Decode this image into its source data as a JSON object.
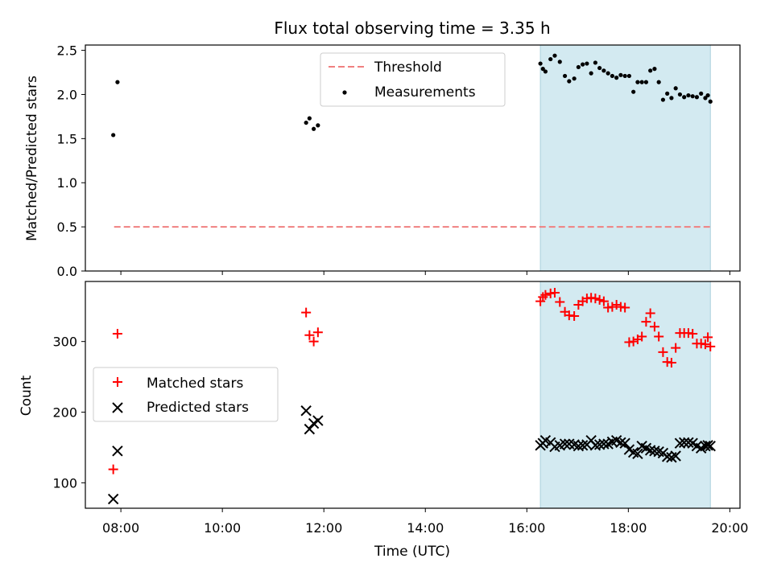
{
  "chart_data": {
    "title": "Flux total observing time = 3.35 h",
    "xlabel": "Time (UTC)",
    "x_unit": "hours UTC",
    "xlim": [
      7.3,
      20.2
    ],
    "xticks": [
      "08:00",
      "10:00",
      "12:00",
      "14:00",
      "16:00",
      "18:00",
      "20:00"
    ],
    "shaded_interval": [
      "16:16",
      "19:37"
    ],
    "shade_color": "#d3eaf1",
    "panels": [
      {
        "type": "scatter",
        "ylabel": "Matched/Predicted stars",
        "ylim": [
          0,
          2.56
        ],
        "yticks": [
          "0.0",
          "0.5",
          "1.0",
          "1.5",
          "2.0",
          "2.5"
        ],
        "legend_position": "upper-center",
        "threshold": {
          "name": "Threshold",
          "value": 0.5,
          "x_range": [
            "07:52",
            "19:37"
          ],
          "color": "#f08080",
          "style": "dashed"
        },
        "series": [
          {
            "name": "Measurements",
            "marker": "dot",
            "color": "#000000",
            "points": [
              [
                "07:51",
                1.54
              ],
              [
                "07:56",
                2.14
              ],
              [
                "11:39",
                1.68
              ],
              [
                "11:43",
                1.73
              ],
              [
                "11:48",
                1.61
              ],
              [
                "11:53",
                1.65
              ],
              [
                "16:16",
                2.35
              ],
              [
                "16:19",
                2.29
              ],
              [
                "16:22",
                2.26
              ],
              [
                "16:28",
                2.4
              ],
              [
                "16:33",
                2.44
              ],
              [
                "16:39",
                2.37
              ],
              [
                "16:45",
                2.21
              ],
              [
                "16:50",
                2.15
              ],
              [
                "16:56",
                2.18
              ],
              [
                "17:01",
                2.31
              ],
              [
                "17:06",
                2.34
              ],
              [
                "17:11",
                2.35
              ],
              [
                "17:16",
                2.24
              ],
              [
                "17:21",
                2.36
              ],
              [
                "17:26",
                2.3
              ],
              [
                "17:31",
                2.27
              ],
              [
                "17:36",
                2.24
              ],
              [
                "17:41",
                2.21
              ],
              [
                "17:46",
                2.19
              ],
              [
                "17:51",
                2.22
              ],
              [
                "17:56",
                2.21
              ],
              [
                "18:01",
                2.21
              ],
              [
                "18:06",
                2.03
              ],
              [
                "18:11",
                2.14
              ],
              [
                "18:16",
                2.14
              ],
              [
                "18:21",
                2.14
              ],
              [
                "18:26",
                2.27
              ],
              [
                "18:31",
                2.29
              ],
              [
                "18:36",
                2.14
              ],
              [
                "18:41",
                1.94
              ],
              [
                "18:46",
                2.01
              ],
              [
                "18:51",
                1.96
              ],
              [
                "18:56",
                2.07
              ],
              [
                "19:01",
                2.0
              ],
              [
                "19:06",
                1.97
              ],
              [
                "19:11",
                1.99
              ],
              [
                "19:16",
                1.98
              ],
              [
                "19:21",
                1.97
              ],
              [
                "19:26",
                2.01
              ],
              [
                "19:31",
                1.96
              ],
              [
                "19:34",
                1.99
              ],
              [
                "19:37",
                1.92
              ]
            ]
          }
        ]
      },
      {
        "type": "scatter",
        "ylabel": "Count",
        "ylim": [
          64,
          385
        ],
        "yticks": [
          "100",
          "200",
          "300"
        ],
        "legend_position": "center-left",
        "series": [
          {
            "name": "Matched stars",
            "marker": "plus",
            "color": "#ff0000",
            "points": [
              [
                "07:51",
                119
              ],
              [
                "07:56",
                311
              ],
              [
                "11:39",
                341
              ],
              [
                "11:43",
                309
              ],
              [
                "11:48",
                300
              ],
              [
                "11:53",
                313
              ],
              [
                "16:16",
                357
              ],
              [
                "16:19",
                363
              ],
              [
                "16:22",
                366
              ],
              [
                "16:28",
                368
              ],
              [
                "16:33",
                369
              ],
              [
                "16:39",
                356
              ],
              [
                "16:45",
                342
              ],
              [
                "16:50",
                337
              ],
              [
                "16:56",
                336
              ],
              [
                "17:01",
                352
              ],
              [
                "17:06",
                357
              ],
              [
                "17:11",
                361
              ],
              [
                "17:16",
                362
              ],
              [
                "17:21",
                361
              ],
              [
                "17:26",
                359
              ],
              [
                "17:31",
                357
              ],
              [
                "17:36",
                348
              ],
              [
                "17:41",
                349
              ],
              [
                "17:46",
                352
              ],
              [
                "17:51",
                349
              ],
              [
                "17:56",
                348
              ],
              [
                "18:01",
                299
              ],
              [
                "18:06",
                300
              ],
              [
                "18:11",
                303
              ],
              [
                "18:16",
                307
              ],
              [
                "18:21",
                328
              ],
              [
                "18:26",
                340
              ],
              [
                "18:31",
                321
              ],
              [
                "18:36",
                307
              ],
              [
                "18:41",
                285
              ],
              [
                "18:46",
                271
              ],
              [
                "18:51",
                270
              ],
              [
                "18:56",
                291
              ],
              [
                "19:01",
                312
              ],
              [
                "19:06",
                312
              ],
              [
                "19:11",
                312
              ],
              [
                "19:16",
                311
              ],
              [
                "19:21",
                297
              ],
              [
                "19:26",
                297
              ],
              [
                "19:31",
                296
              ],
              [
                "19:34",
                306
              ],
              [
                "19:37",
                293
              ]
            ]
          },
          {
            "name": "Predicted stars",
            "marker": "x",
            "color": "#000000",
            "points": [
              [
                "07:51",
                77
              ],
              [
                "07:56",
                145
              ],
              [
                "11:39",
                202
              ],
              [
                "11:43",
                176
              ],
              [
                "11:48",
                184
              ],
              [
                "11:53",
                188
              ],
              [
                "16:16",
                153
              ],
              [
                "16:19",
                156
              ],
              [
                "16:22",
                160
              ],
              [
                "16:28",
                157
              ],
              [
                "16:33",
                151
              ],
              [
                "16:39",
                153
              ],
              [
                "16:45",
                155
              ],
              [
                "16:50",
                155
              ],
              [
                "16:56",
                154
              ],
              [
                "17:01",
                152
              ],
              [
                "17:06",
                153
              ],
              [
                "17:11",
                154
              ],
              [
                "17:16",
                160
              ],
              [
                "17:21",
                153
              ],
              [
                "17:26",
                154
              ],
              [
                "17:31",
                155
              ],
              [
                "17:36",
                155
              ],
              [
                "17:41",
                158
              ],
              [
                "17:46",
                160
              ],
              [
                "17:51",
                157
              ],
              [
                "17:56",
                156
              ],
              [
                "18:01",
                147
              ],
              [
                "18:06",
                143
              ],
              [
                "18:11",
                141
              ],
              [
                "18:16",
                152
              ],
              [
                "18:21",
                149
              ],
              [
                "18:26",
                146
              ],
              [
                "18:31",
                145
              ],
              [
                "18:36",
                144
              ],
              [
                "18:41",
                142
              ],
              [
                "18:46",
                137
              ],
              [
                "18:51",
                136
              ],
              [
                "18:56",
                138
              ],
              [
                "19:01",
                156
              ],
              [
                "19:06",
                157
              ],
              [
                "19:11",
                157
              ],
              [
                "19:16",
                156
              ],
              [
                "19:21",
                152
              ],
              [
                "19:26",
                149
              ],
              [
                "19:31",
                152
              ],
              [
                "19:34",
                153
              ],
              [
                "19:37",
                152
              ]
            ]
          }
        ]
      }
    ]
  }
}
